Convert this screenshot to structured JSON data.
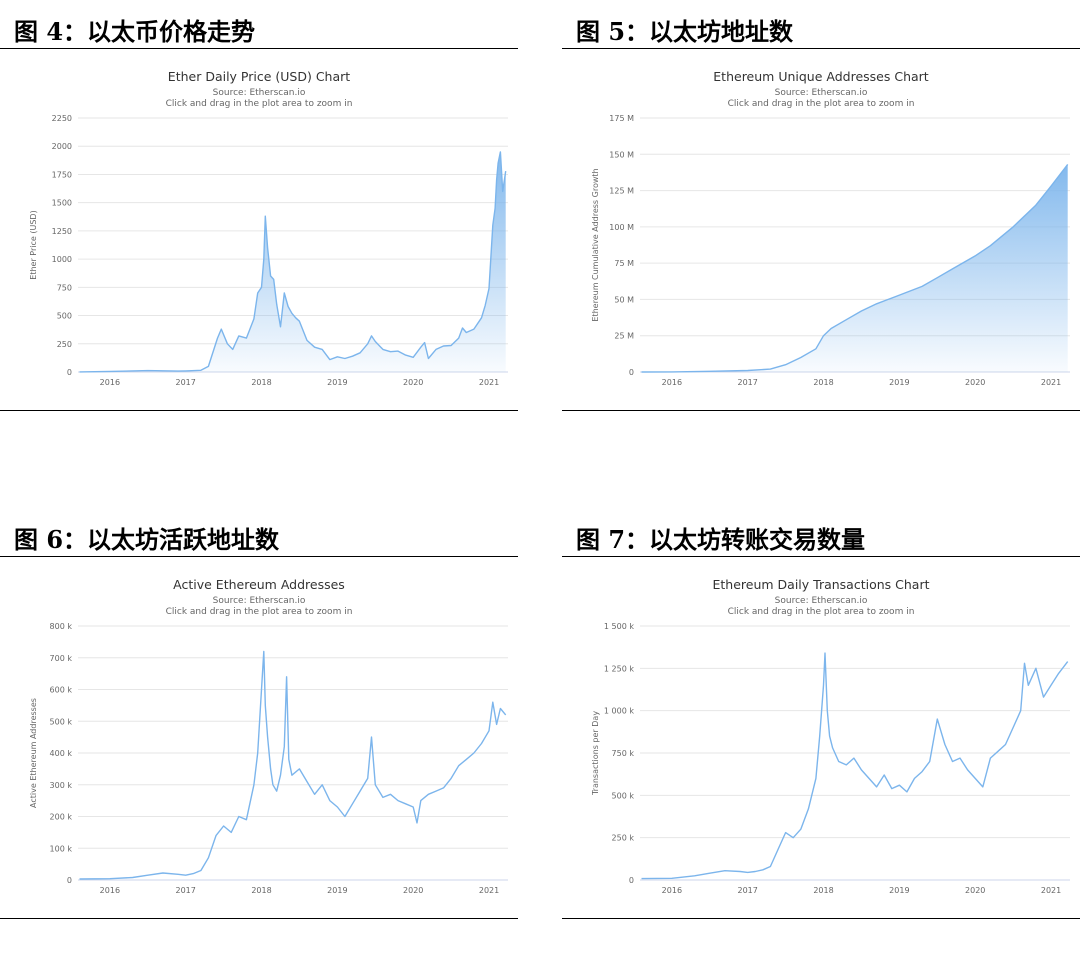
{
  "figures": [
    {
      "caption": "图 4：以太币价格走势"
    },
    {
      "caption": "图 5：以太坊地址数"
    },
    {
      "caption": "图 6：以太坊活跃地址数"
    },
    {
      "caption": "图 7：以太坊转账交易数量"
    }
  ],
  "colors": {
    "series": "#7cb5ec",
    "grid": "#e6e6e6",
    "rule": "#000000"
  },
  "chart_data": [
    {
      "type": "area",
      "title": "Ether Daily Price (USD) Chart",
      "subtitle": "Source: Etherscan.io",
      "subtitle2": "Click and drag in the plot area to zoom in",
      "ylabel": "Ether Price (USD)",
      "xlabel": "",
      "xlim": [
        2015.58,
        2021.25
      ],
      "ylim": [
        0,
        2250
      ],
      "x_ticks": [
        2016,
        2017,
        2018,
        2019,
        2020,
        2021
      ],
      "y_ticks": [
        0,
        250,
        500,
        750,
        1000,
        1250,
        1500,
        1750,
        2000,
        2250
      ],
      "y_tick_labels": [
        "0",
        "250",
        "500",
        "750",
        "1000",
        "1250",
        "1500",
        "1750",
        "2000",
        "2250"
      ],
      "grid": true,
      "x": [
        2015.6,
        2016.0,
        2016.5,
        2016.9,
        2017.0,
        2017.2,
        2017.3,
        2017.42,
        2017.47,
        2017.55,
        2017.62,
        2017.7,
        2017.8,
        2017.9,
        2017.95,
        2018.0,
        2018.03,
        2018.05,
        2018.08,
        2018.12,
        2018.16,
        2018.2,
        2018.25,
        2018.3,
        2018.35,
        2018.4,
        2018.45,
        2018.5,
        2018.6,
        2018.7,
        2018.8,
        2018.9,
        2019.0,
        2019.1,
        2019.2,
        2019.3,
        2019.4,
        2019.45,
        2019.5,
        2019.6,
        2019.7,
        2019.8,
        2019.9,
        2020.0,
        2020.1,
        2020.15,
        2020.2,
        2020.3,
        2020.4,
        2020.5,
        2020.6,
        2020.65,
        2020.7,
        2020.8,
        2020.9,
        2020.95,
        2021.0,
        2021.05,
        2021.08,
        2021.1,
        2021.12,
        2021.15,
        2021.18,
        2021.22
      ],
      "y": [
        1,
        5,
        12,
        8,
        10,
        15,
        50,
        300,
        380,
        250,
        200,
        320,
        300,
        470,
        700,
        750,
        1000,
        1380,
        1100,
        850,
        820,
        600,
        400,
        700,
        580,
        520,
        480,
        450,
        280,
        220,
        200,
        110,
        135,
        120,
        140,
        170,
        250,
        320,
        270,
        200,
        180,
        185,
        150,
        130,
        220,
        260,
        120,
        200,
        230,
        235,
        300,
        390,
        350,
        380,
        480,
        590,
        740,
        1300,
        1450,
        1700,
        1850,
        1950,
        1600,
        1780
      ]
    },
    {
      "type": "area",
      "title": "Ethereum Unique Addresses Chart",
      "subtitle": "Source: Etherscan.io",
      "subtitle2": "Click and drag in the plot area to zoom in",
      "ylabel": "Ethereum Cumulative Address Growth",
      "xlabel": "",
      "xlim": [
        2015.58,
        2021.25
      ],
      "ylim": [
        0,
        175
      ],
      "x_ticks": [
        2016,
        2017,
        2018,
        2019,
        2020,
        2021
      ],
      "y_ticks": [
        0,
        25,
        50,
        75,
        100,
        125,
        150,
        175
      ],
      "y_tick_labels": [
        "0",
        "25 M",
        "50 M",
        "75 M",
        "100 M",
        "125 M",
        "150 M",
        "175 M"
      ],
      "grid": true,
      "x": [
        2015.6,
        2016.0,
        2016.5,
        2017.0,
        2017.3,
        2017.5,
        2017.7,
        2017.9,
        2018.0,
        2018.1,
        2018.3,
        2018.5,
        2018.7,
        2019.0,
        2019.3,
        2019.5,
        2019.7,
        2020.0,
        2020.2,
        2020.5,
        2020.8,
        2021.0,
        2021.22
      ],
      "y": [
        0,
        0.1,
        0.5,
        1,
        2,
        5,
        10,
        16,
        25,
        30,
        36,
        42,
        47,
        53,
        59,
        65,
        71,
        80,
        87,
        100,
        115,
        128,
        143
      ]
    },
    {
      "type": "line",
      "title": "Active Ethereum Addresses",
      "subtitle": "Source: Etherscan.io",
      "subtitle2": "Click and drag in the plot area to zoom in",
      "ylabel": "Active Ethereum Addresses",
      "xlabel": "",
      "xlim": [
        2015.58,
        2021.25
      ],
      "ylim": [
        0,
        800
      ],
      "x_ticks": [
        2016,
        2017,
        2018,
        2019,
        2020,
        2021
      ],
      "y_ticks": [
        0,
        100,
        200,
        300,
        400,
        500,
        600,
        700,
        800
      ],
      "y_tick_labels": [
        "0",
        "100 k",
        "200 k",
        "300 k",
        "400 k",
        "500 k",
        "600 k",
        "700 k",
        "800 k"
      ],
      "grid": true,
      "x": [
        2015.6,
        2016.0,
        2016.3,
        2016.5,
        2016.7,
        2016.9,
        2017.0,
        2017.1,
        2017.2,
        2017.3,
        2017.4,
        2017.5,
        2017.6,
        2017.7,
        2017.8,
        2017.9,
        2017.95,
        2018.0,
        2018.03,
        2018.05,
        2018.08,
        2018.12,
        2018.15,
        2018.2,
        2018.25,
        2018.3,
        2018.33,
        2018.36,
        2018.4,
        2018.5,
        2018.6,
        2018.7,
        2018.8,
        2018.9,
        2019.0,
        2019.1,
        2019.2,
        2019.3,
        2019.4,
        2019.45,
        2019.5,
        2019.6,
        2019.7,
        2019.8,
        2019.9,
        2020.0,
        2020.05,
        2020.1,
        2020.2,
        2020.3,
        2020.4,
        2020.5,
        2020.6,
        2020.7,
        2020.8,
        2020.9,
        2021.0,
        2021.05,
        2021.1,
        2021.15,
        2021.22
      ],
      "y": [
        3,
        4,
        8,
        15,
        22,
        18,
        15,
        20,
        30,
        70,
        140,
        170,
        150,
        200,
        190,
        300,
        400,
        600,
        720,
        550,
        450,
        350,
        300,
        280,
        330,
        420,
        640,
        380,
        330,
        350,
        310,
        270,
        300,
        250,
        230,
        200,
        240,
        280,
        320,
        450,
        300,
        260,
        270,
        250,
        240,
        230,
        180,
        250,
        270,
        280,
        290,
        320,
        360,
        380,
        400,
        430,
        470,
        560,
        490,
        540,
        520
      ]
    },
    {
      "type": "line",
      "title": "Ethereum Daily Transactions Chart",
      "subtitle": "Source: Etherscan.io",
      "subtitle2": "Click and drag in the plot area to zoom in",
      "ylabel": "Transactions per Day",
      "xlabel": "",
      "xlim": [
        2015.58,
        2021.25
      ],
      "ylim": [
        0,
        1500
      ],
      "x_ticks": [
        2016,
        2017,
        2018,
        2019,
        2020,
        2021
      ],
      "y_ticks": [
        0,
        250,
        500,
        750,
        1000,
        1250,
        1500
      ],
      "y_tick_labels": [
        "0",
        "250 k",
        "500 k",
        "750 k",
        "1 000 k",
        "1 250 k",
        "1 500 k"
      ],
      "grid": true,
      "x": [
        2015.6,
        2016.0,
        2016.3,
        2016.5,
        2016.7,
        2016.9,
        2017.0,
        2017.1,
        2017.2,
        2017.3,
        2017.4,
        2017.5,
        2017.6,
        2017.7,
        2017.8,
        2017.9,
        2017.95,
        2018.0,
        2018.02,
        2018.05,
        2018.08,
        2018.12,
        2018.2,
        2018.3,
        2018.4,
        2018.5,
        2018.6,
        2018.7,
        2018.8,
        2018.9,
        2019.0,
        2019.1,
        2019.2,
        2019.3,
        2019.4,
        2019.5,
        2019.6,
        2019.7,
        2019.8,
        2019.9,
        2020.0,
        2020.1,
        2020.2,
        2020.3,
        2020.4,
        2020.5,
        2020.6,
        2020.65,
        2020.7,
        2020.8,
        2020.9,
        2021.0,
        2021.1,
        2021.22
      ],
      "y": [
        8,
        10,
        25,
        40,
        55,
        50,
        45,
        50,
        60,
        80,
        180,
        280,
        250,
        300,
        420,
        600,
        850,
        1150,
        1340,
        1000,
        850,
        780,
        700,
        680,
        720,
        650,
        600,
        550,
        620,
        540,
        560,
        520,
        600,
        640,
        700,
        950,
        800,
        700,
        720,
        650,
        600,
        550,
        720,
        760,
        800,
        900,
        1000,
        1280,
        1150,
        1250,
        1080,
        1150,
        1220,
        1290
      ]
    }
  ]
}
